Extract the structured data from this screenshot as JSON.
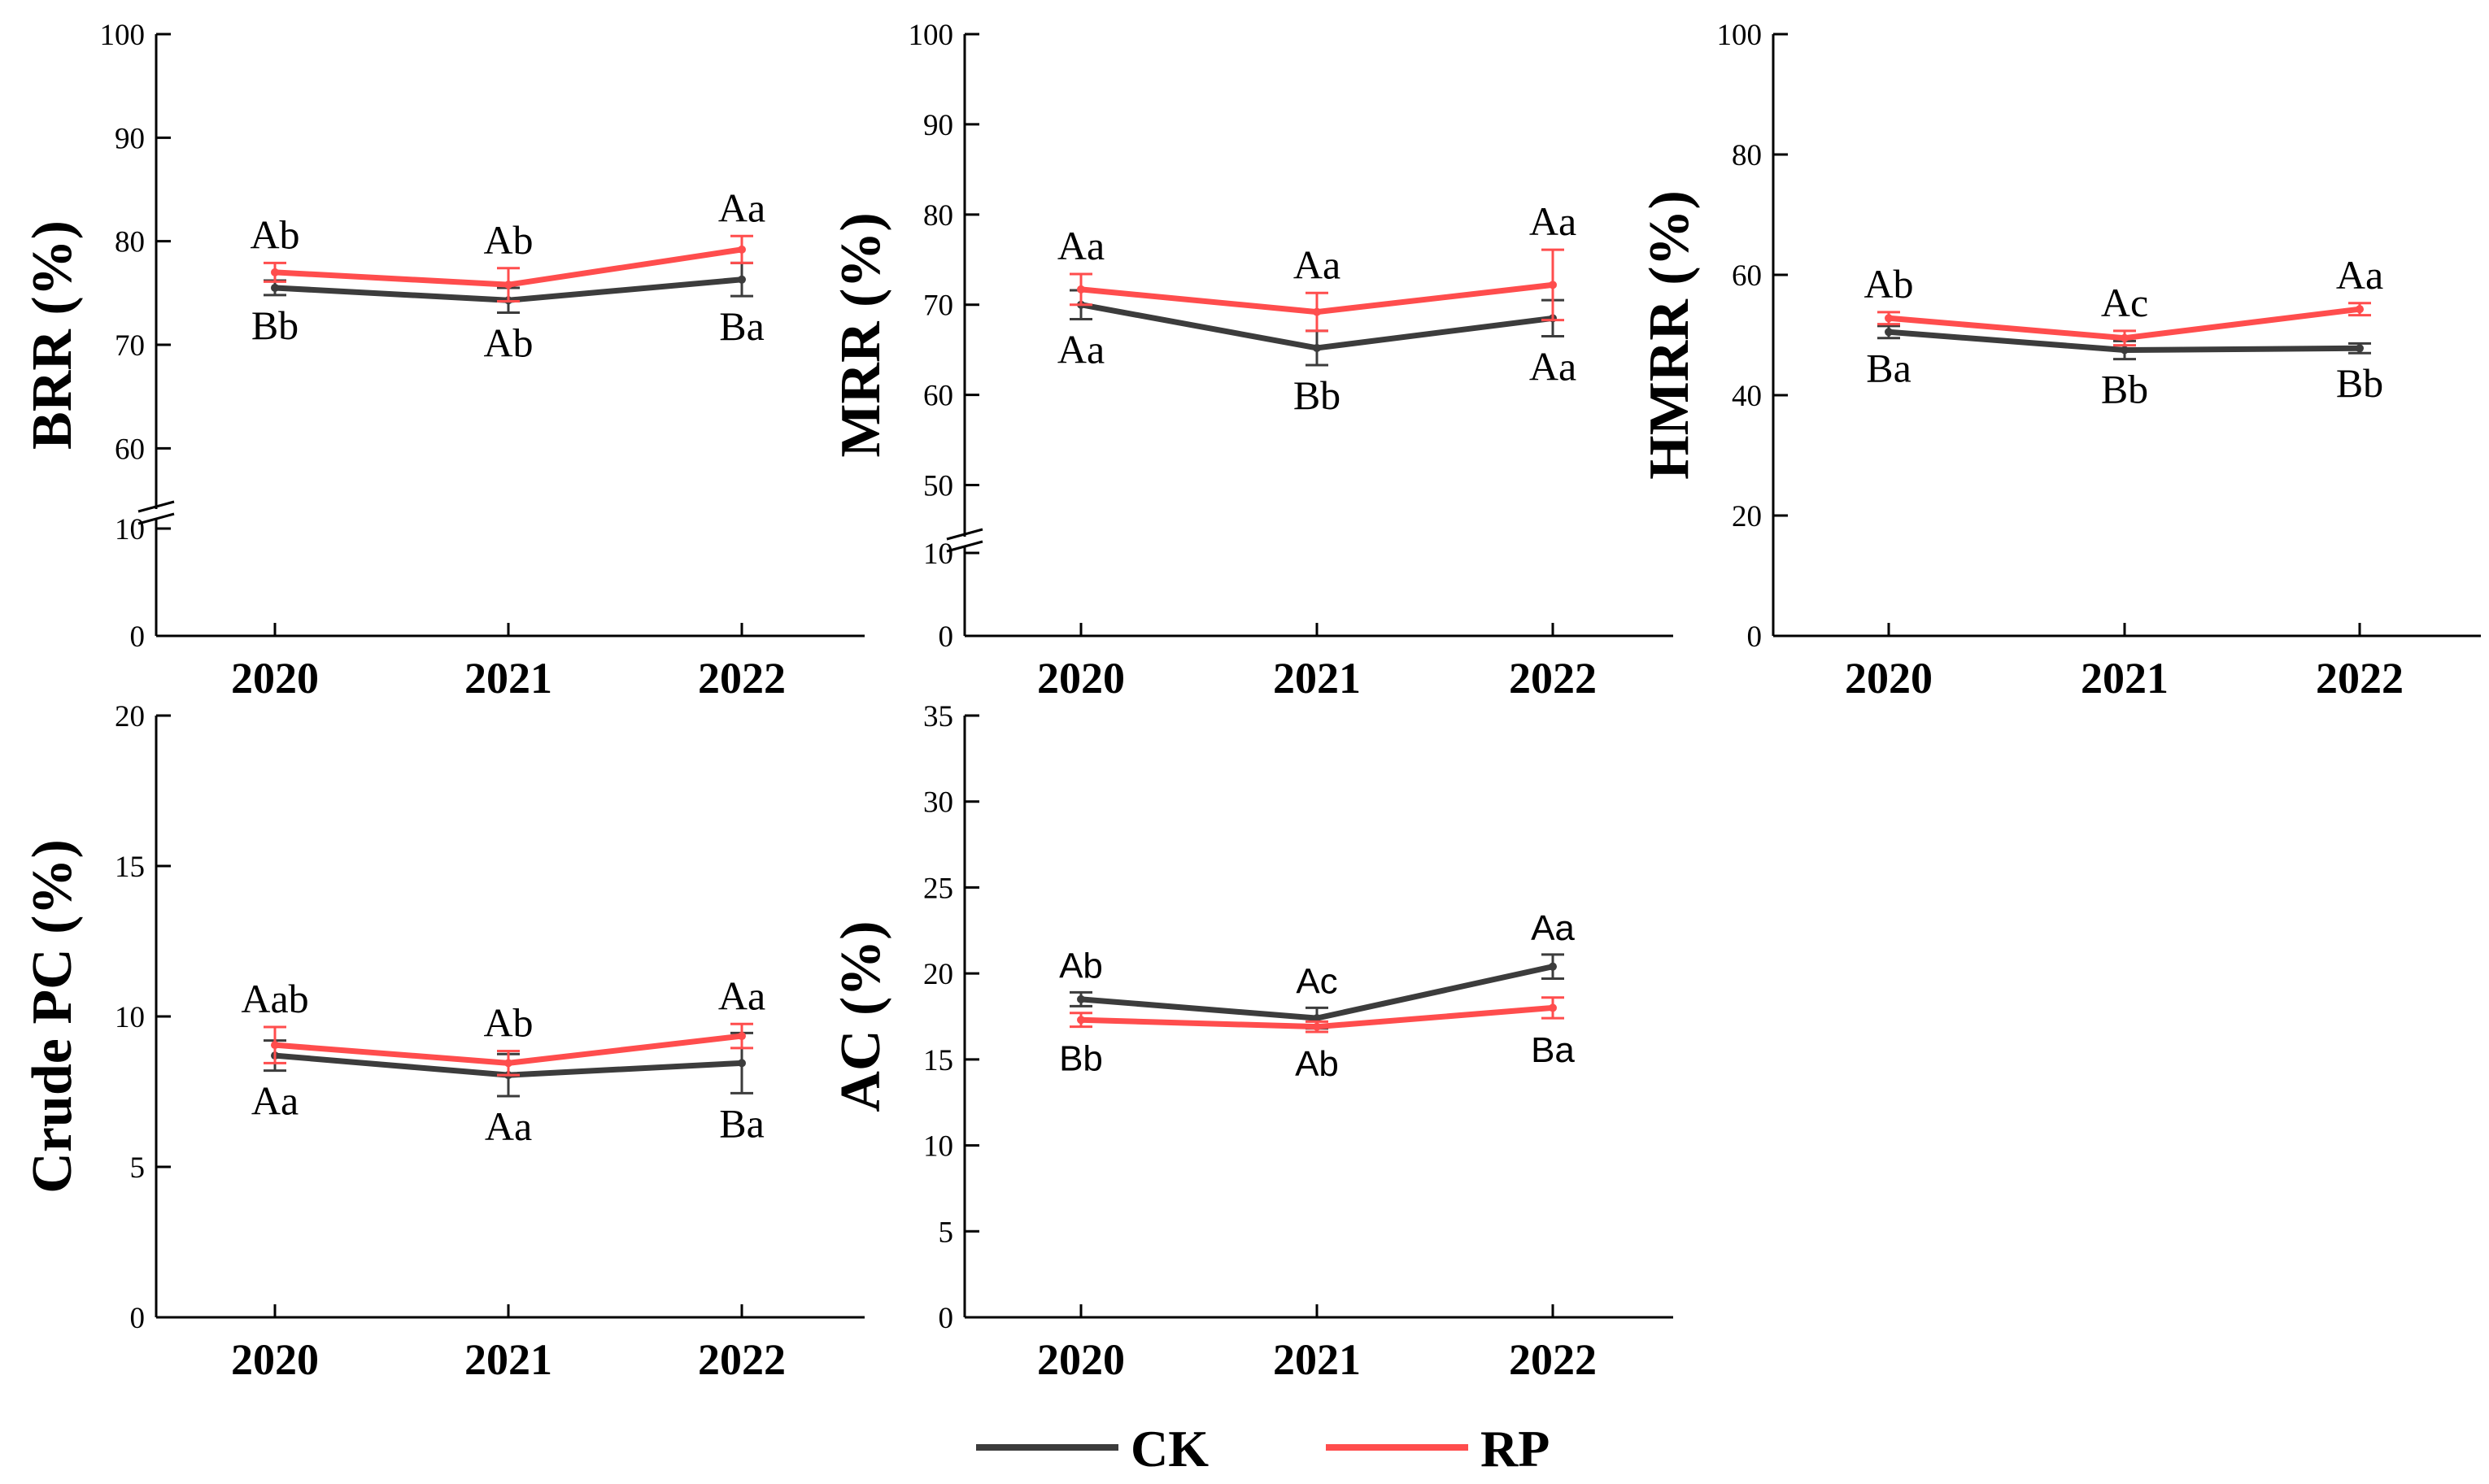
{
  "colors": {
    "CK": "#3c3c3c",
    "RP": "#ff4d4d",
    "axis": "#000000"
  },
  "legend": [
    {
      "key": "CK",
      "label": "CK"
    },
    {
      "key": "RP",
      "label": "RP"
    }
  ],
  "chart_data": [
    {
      "type": "line",
      "title": "",
      "ylabel": "BRR (%)",
      "categories": [
        "2020",
        "2021",
        "2022"
      ],
      "ylim": [
        0,
        100
      ],
      "axis_break": {
        "low": [
          0,
          10
        ],
        "high": [
          55,
          100
        ]
      },
      "yticks": [
        0,
        10,
        60,
        70,
        80,
        90,
        100
      ],
      "series": [
        {
          "name": "CK",
          "values": [
            75.5,
            74.3,
            76.3
          ],
          "errors": [
            0.7,
            1.2,
            1.6
          ],
          "labels": [
            "Bb",
            "Ab",
            "Ba"
          ]
        },
        {
          "name": "RP",
          "values": [
            77.0,
            75.8,
            79.2
          ],
          "errors": [
            0.9,
            1.6,
            1.3
          ],
          "labels": [
            "Ab",
            "Ab",
            "Aa"
          ]
        }
      ]
    },
    {
      "type": "line",
      "title": "",
      "ylabel": "MRR (%)",
      "categories": [
        "2020",
        "2021",
        "2022"
      ],
      "ylim": [
        0,
        100
      ],
      "axis_break": {
        "low": [
          0,
          10
        ],
        "high": [
          45,
          100
        ]
      },
      "yticks": [
        0,
        10,
        50,
        60,
        70,
        80,
        90,
        100
      ],
      "series": [
        {
          "name": "CK",
          "values": [
            70.0,
            65.2,
            68.5
          ],
          "errors": [
            1.6,
            1.9,
            2.0
          ],
          "labels": [
            "Aa",
            "Bb",
            "Aa"
          ]
        },
        {
          "name": "RP",
          "values": [
            71.7,
            69.2,
            72.2
          ],
          "errors": [
            1.7,
            2.1,
            3.9
          ],
          "labels": [
            "Aa",
            "Aa",
            "Aa"
          ]
        }
      ]
    },
    {
      "type": "line",
      "title": "",
      "ylabel": "HMRR (%)",
      "categories": [
        "2020",
        "2021",
        "2022"
      ],
      "ylim": [
        0,
        100
      ],
      "yticks": [
        0,
        20,
        40,
        60,
        80,
        100
      ],
      "series": [
        {
          "name": "CK",
          "values": [
            50.5,
            47.5,
            47.8
          ],
          "errors": [
            1.0,
            1.5,
            0.8
          ],
          "labels": [
            "Ba",
            "Bb",
            "Bb"
          ]
        },
        {
          "name": "RP",
          "values": [
            52.8,
            49.5,
            54.3
          ],
          "errors": [
            1.0,
            1.2,
            1.0
          ],
          "labels": [
            "Ab",
            "Ac",
            "Aa"
          ]
        }
      ]
    },
    {
      "type": "line",
      "title": "",
      "ylabel": "Crude PC (%)",
      "categories": [
        "2020",
        "2021",
        "2022"
      ],
      "ylim": [
        0,
        20
      ],
      "yticks": [
        0,
        5,
        10,
        15,
        20
      ],
      "series": [
        {
          "name": "CK",
          "values": [
            8.7,
            8.05,
            8.45
          ],
          "errors": [
            0.5,
            0.7,
            1.0
          ],
          "labels": [
            "Aa",
            "Aa",
            "Ba"
          ]
        },
        {
          "name": "RP",
          "values": [
            9.05,
            8.45,
            9.35
          ],
          "errors": [
            0.6,
            0.4,
            0.4
          ],
          "labels": [
            "Aab",
            "Ab",
            "Aa"
          ]
        }
      ]
    },
    {
      "type": "line",
      "title": "",
      "ylabel": "AC (%)",
      "categories": [
        "2020",
        "2021",
        "2022"
      ],
      "ylim": [
        0,
        35
      ],
      "yticks": [
        0,
        5,
        10,
        15,
        20,
        25,
        30,
        35
      ],
      "series": [
        {
          "name": "CK",
          "values": [
            18.5,
            17.4,
            20.4
          ],
          "errors": [
            0.4,
            0.6,
            0.7
          ],
          "labels": [
            "Ab",
            "Ac",
            "Aa"
          ]
        },
        {
          "name": "RP",
          "values": [
            17.3,
            16.9,
            18.0
          ],
          "errors": [
            0.4,
            0.3,
            0.6
          ],
          "labels": [
            "Bb",
            "Ab",
            "Ba"
          ]
        }
      ]
    }
  ]
}
